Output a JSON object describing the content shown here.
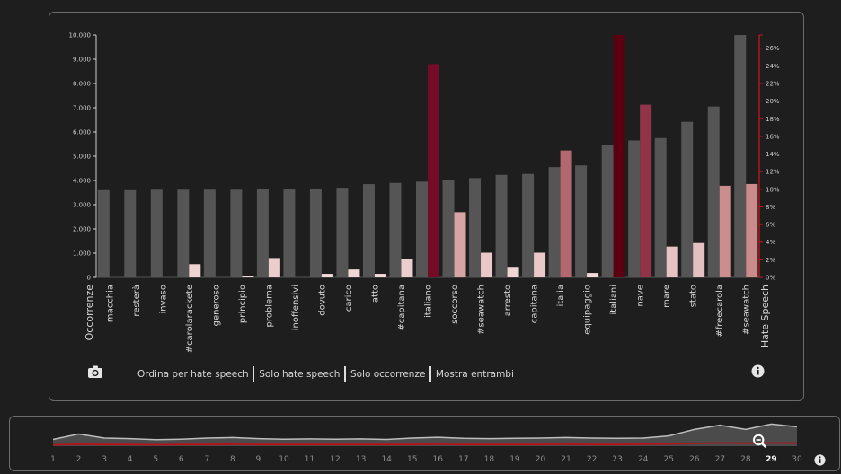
{
  "controls": {
    "sort_hate": "Ordina per hate speech",
    "only_hate": "Solo hate speech",
    "only_occ": "Solo occorrenze",
    "show_both": "Mostra entrambi"
  },
  "icons": {
    "camera": "camera-icon",
    "info": "info-icon",
    "zoom_out": "zoom-out-icon"
  },
  "colors": {
    "occurrence_bar": "#555555",
    "hate_scale": [
      "#f5dede",
      "#c98888",
      "#7a0f2e",
      "#5a0010"
    ],
    "hate_axis": "#c0191f",
    "timeline_line": "#bdbdbd",
    "timeline_hate": "#b3121b"
  },
  "chart_data": {
    "type": "bar",
    "categories": [
      "macchia",
      "resterà",
      "invaso",
      "#carolarackete",
      "generoso",
      "principio",
      "problema",
      "inoffensivi",
      "dovuto",
      "carico",
      "atto",
      "#capitana",
      "italiano",
      "soccorso",
      "#seawatch",
      "arresto",
      "capitana",
      "italia",
      "equipaggio",
      "italiani",
      "nave",
      "mare",
      "stato",
      "#freecarola",
      "#seawatch"
    ],
    "xlabel_left": "Occorrenze",
    "xlabel_right": "Hate Speech",
    "y_left": {
      "label": "",
      "ylim": [
        0,
        10000
      ],
      "ticks": [
        "0",
        "1.000",
        "2.000",
        "3.000",
        "4.000",
        "5.000",
        "6.000",
        "7.000",
        "8.000",
        "9.000",
        "10.000"
      ]
    },
    "y_right": {
      "label": "",
      "ylim": [
        0,
        27.5
      ],
      "ticks": [
        "0%",
        "2%",
        "4%",
        "6%",
        "8%",
        "10%",
        "12%",
        "14%",
        "16%",
        "18%",
        "20%",
        "22%",
        "24%",
        "26%"
      ]
    },
    "series": [
      {
        "axis": "left",
        "values": [
          3600,
          3600,
          3620,
          3620,
          3620,
          3620,
          3650,
          3650,
          3650,
          3700,
          3850,
          3900,
          3950,
          4000,
          4100,
          4230,
          4270,
          4550,
          4620,
          5480,
          5650,
          5750,
          6420,
          7050,
          10000
        ]
      },
      {
        "axis": "right",
        "values": [
          0,
          0,
          0,
          1.5,
          0,
          0.1,
          2.2,
          0,
          0.4,
          0.9,
          0.4,
          2.1,
          24.2,
          7.4,
          2.8,
          1.2,
          2.8,
          14.4,
          0.5,
          27.5,
          19.6,
          3.5,
          3.9,
          10.4,
          10.6
        ]
      }
    ]
  },
  "timeline": {
    "ticks": [
      "1",
      "2",
      "3",
      "4",
      "5",
      "6",
      "7",
      "8",
      "9",
      "10",
      "11",
      "12",
      "13",
      "14",
      "15",
      "16",
      "17",
      "18",
      "19",
      "20",
      "21",
      "22",
      "23",
      "24",
      "25",
      "26",
      "27",
      "28",
      "29",
      "30"
    ],
    "selected": "29",
    "occurrence": [
      0.25,
      0.45,
      0.3,
      0.28,
      0.24,
      0.26,
      0.3,
      0.32,
      0.28,
      0.26,
      0.27,
      0.26,
      0.27,
      0.25,
      0.3,
      0.33,
      0.29,
      0.28,
      0.29,
      0.3,
      0.32,
      0.3,
      0.29,
      0.3,
      0.38,
      0.62,
      0.78,
      0.62,
      0.82,
      0.72
    ],
    "hate": [
      0.05,
      0.07,
      0.06,
      0.06,
      0.05,
      0.06,
      0.06,
      0.07,
      0.06,
      0.06,
      0.06,
      0.06,
      0.06,
      0.06,
      0.06,
      0.07,
      0.06,
      0.06,
      0.06,
      0.06,
      0.07,
      0.06,
      0.06,
      0.07,
      0.08,
      0.1,
      0.12,
      0.11,
      0.12,
      0.11
    ]
  }
}
